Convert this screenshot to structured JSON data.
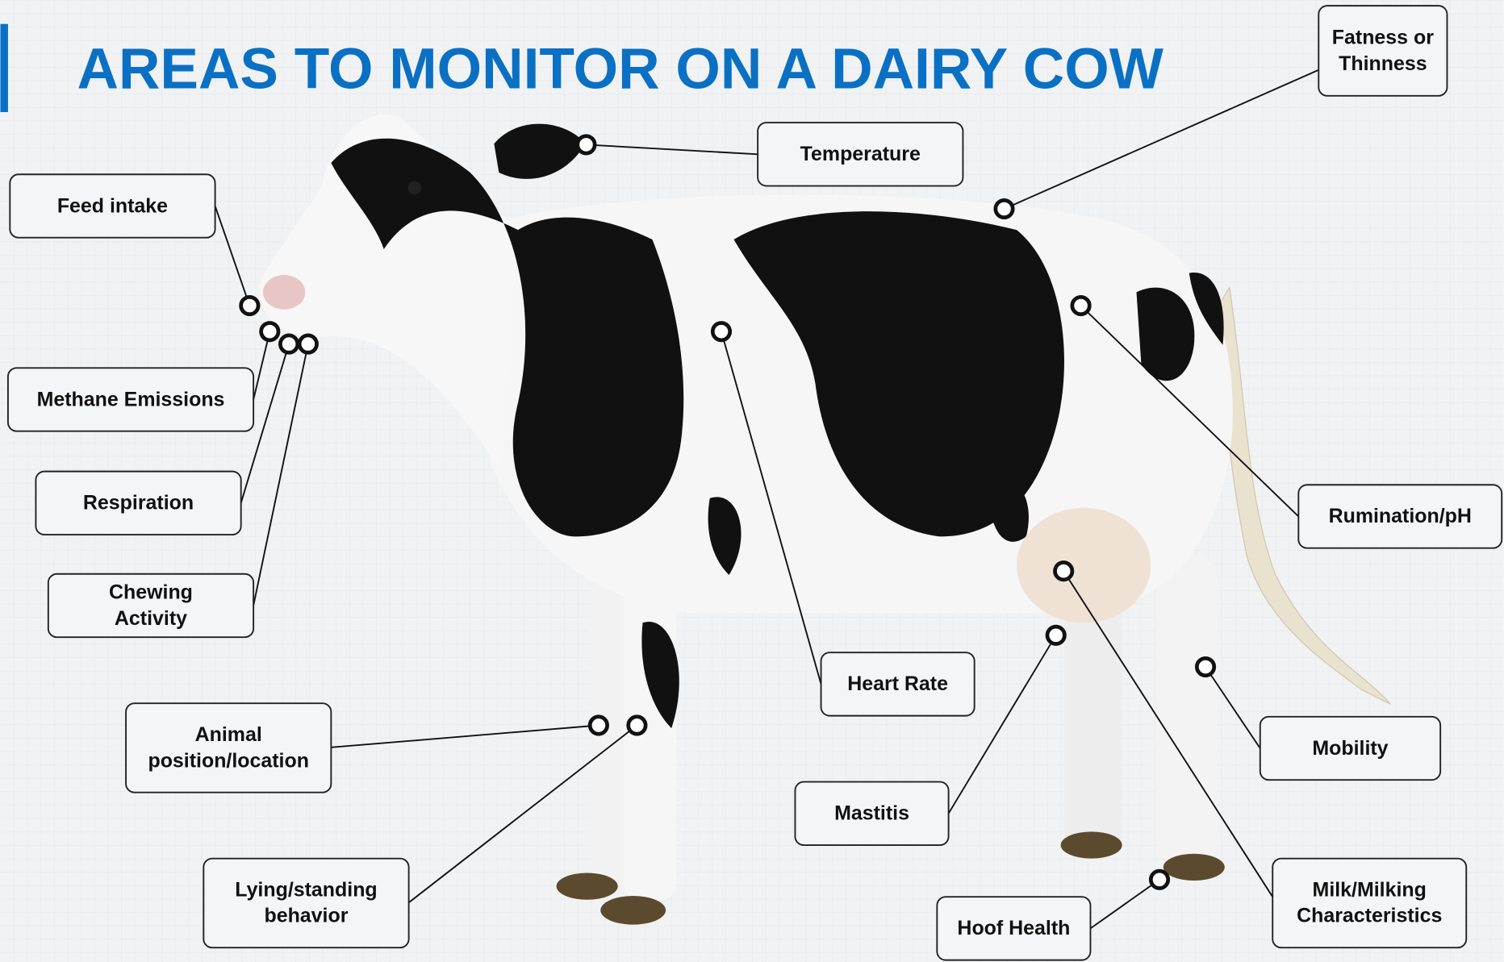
{
  "header": {
    "title": "AREAS TO MONITOR ON A DAIRY COW"
  },
  "labels": [
    {
      "lines": [
        "Feed intake"
      ]
    },
    {
      "lines": [
        "Methane Emissions"
      ]
    },
    {
      "lines": [
        "Respiration"
      ]
    },
    {
      "lines": [
        "Chewing",
        "Activity"
      ]
    },
    {
      "lines": [
        "Temperature"
      ]
    },
    {
      "lines": [
        "Fatness or",
        "Thinness"
      ]
    },
    {
      "lines": [
        "Rumination/pH"
      ]
    },
    {
      "lines": [
        "Heart Rate"
      ]
    },
    {
      "lines": [
        "Animal",
        "position/location"
      ]
    },
    {
      "lines": [
        "Lying/standing",
        "behavior"
      ]
    },
    {
      "lines": [
        "Mastitis"
      ]
    },
    {
      "lines": [
        "Mobility"
      ]
    },
    {
      "lines": [
        "Milk/Milking",
        "Characteristics"
      ]
    },
    {
      "lines": [
        "Hoof Health"
      ]
    }
  ]
}
